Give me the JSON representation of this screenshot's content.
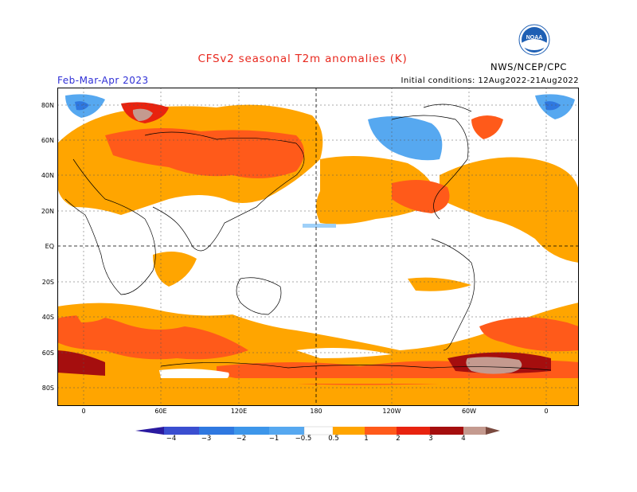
{
  "header": {
    "title": "CFSv2 seasonal T2m anomalies (K)",
    "season": "Feb-Mar-Apr 2023",
    "initial_conditions": "Initial conditions: 12Aug2022-21Aug2022",
    "agency": "NWS/NCEP/CPC",
    "logo_text": "NOAA"
  },
  "map": {
    "lat_labels": [
      "80N",
      "60N",
      "40N",
      "20N",
      "EQ",
      "20S",
      "40S",
      "60S",
      "80S"
    ],
    "lon_labels": [
      "0",
      "60E",
      "120E",
      "180",
      "120W",
      "60W",
      "0"
    ]
  },
  "colorbar": {
    "labels": [
      "−4",
      "−3",
      "−2",
      "−1",
      "−0.5",
      "0.5",
      "1",
      "2",
      "3",
      "4"
    ],
    "colors": [
      "#2a1aa0",
      "#3a4ed0",
      "#2f78e0",
      "#56a8f0",
      "#9fd0f8",
      "#ffffff",
      "#ffa500",
      "#ff5a1a",
      "#e8230f",
      "#a50e0e",
      "#c49a8f",
      "#7a4a3f"
    ]
  }
}
